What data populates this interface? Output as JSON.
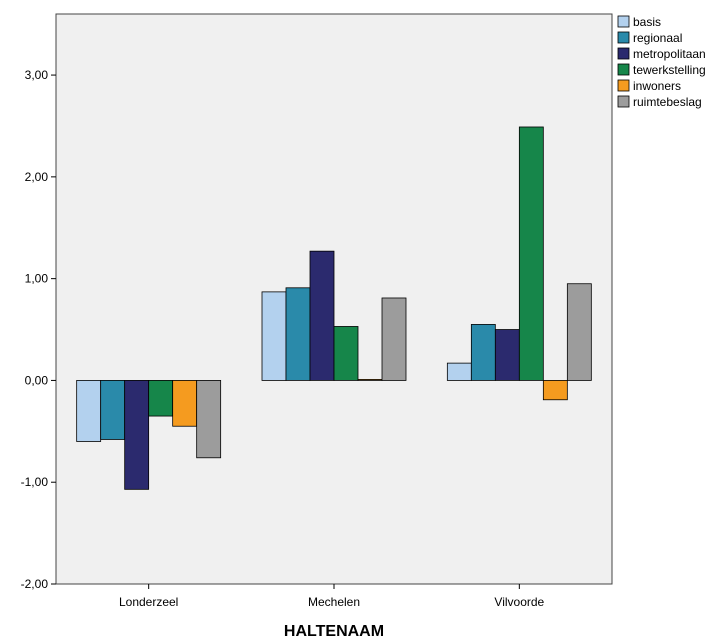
{
  "chart_data": {
    "type": "bar",
    "title": "",
    "xlabel": "HALTENAAM",
    "ylabel": "",
    "categories": [
      "Londerzeel",
      "Mechelen",
      "Vilvoorde"
    ],
    "ylim": [
      -2.0,
      3.6
    ],
    "yticks": [
      "-2,00",
      "-1,00",
      "0,00",
      "1,00",
      "2,00",
      "3,00"
    ],
    "ytick_values": [
      -2,
      -1,
      0,
      1,
      2,
      3
    ],
    "grid": false,
    "legend_position": "top-right",
    "series": [
      {
        "name": "basis",
        "color": "#b3d1ee",
        "values": [
          -0.6,
          0.87,
          0.17
        ]
      },
      {
        "name": "regionaal",
        "color": "#2a8aaa",
        "values": [
          -0.58,
          0.91,
          0.55
        ]
      },
      {
        "name": "metropolitaan",
        "color": "#2b2a6e",
        "values": [
          -1.07,
          1.27,
          0.5
        ]
      },
      {
        "name": "tewerkstelling",
        "color": "#16864a",
        "values": [
          -0.35,
          0.53,
          2.49
        ]
      },
      {
        "name": "inwoners",
        "color": "#f59b1f",
        "values": [
          -0.45,
          0.01,
          -0.19
        ]
      },
      {
        "name": "ruimtebeslag",
        "color": "#9c9c9c",
        "values": [
          -0.76,
          0.81,
          0.95
        ]
      }
    ],
    "plot_background": "#f0f0f0"
  }
}
